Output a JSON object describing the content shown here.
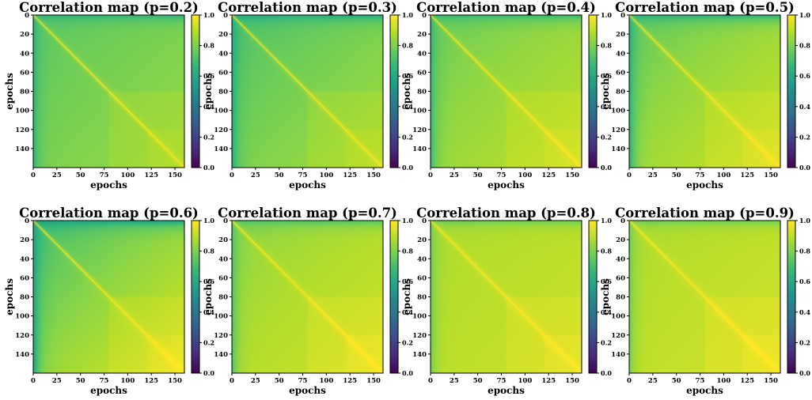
{
  "chart_data": {
    "type": "heatmap",
    "colormap": "viridis",
    "colors": {
      "viridis_stops": [
        "#440154",
        "#482878",
        "#3e4989",
        "#31688e",
        "#26828e",
        "#1f9e89",
        "#35b779",
        "#6ece58",
        "#b5de2b",
        "#fde725"
      ]
    },
    "shared": {
      "xlabel": "epochs",
      "ylabel": "epochs",
      "epochs_extent": [
        0,
        160
      ],
      "x_ticks": [
        0,
        25,
        50,
        75,
        100,
        125,
        150
      ],
      "y_ticks": [
        0,
        20,
        40,
        60,
        80,
        100,
        120,
        140
      ],
      "colorbar_ticks": [
        "0.0",
        "0.2",
        "0.4",
        "0.6",
        "0.8",
        "1.0"
      ],
      "colorbar_range": [
        0.0,
        1.0
      ],
      "block_boundaries": [
        80,
        120
      ]
    },
    "panels": [
      {
        "title": "Correlation map (p=0.2)",
        "p": 0.2,
        "early_corr": 0.72,
        "late_corr": 0.84,
        "floor_corr": 0.7,
        "diag_corr": 1.0
      },
      {
        "title": "Correlation map (p=0.3)",
        "p": 0.3,
        "early_corr": 0.68,
        "late_corr": 0.86,
        "floor_corr": 0.66,
        "diag_corr": 1.0
      },
      {
        "title": "Correlation map (p=0.4)",
        "p": 0.4,
        "early_corr": 0.74,
        "late_corr": 0.9,
        "floor_corr": 0.72,
        "diag_corr": 1.0
      },
      {
        "title": "Correlation map (p=0.5)",
        "p": 0.5,
        "early_corr": 0.72,
        "late_corr": 0.92,
        "floor_corr": 0.68,
        "diag_corr": 1.0
      },
      {
        "title": "Correlation map (p=0.6)",
        "p": 0.6,
        "early_corr": 0.64,
        "late_corr": 0.94,
        "floor_corr": 0.62,
        "diag_corr": 1.0
      },
      {
        "title": "Correlation map (p=0.7)",
        "p": 0.7,
        "early_corr": 0.8,
        "late_corr": 0.93,
        "floor_corr": 0.78,
        "diag_corr": 1.0
      },
      {
        "title": "Correlation map (p=0.8)",
        "p": 0.8,
        "early_corr": 0.86,
        "late_corr": 0.92,
        "floor_corr": 0.84,
        "diag_corr": 1.0
      },
      {
        "title": "Correlation map (p=0.9)",
        "p": 0.9,
        "early_corr": 0.86,
        "late_corr": 0.93,
        "floor_corr": 0.84,
        "diag_corr": 1.0
      }
    ]
  }
}
